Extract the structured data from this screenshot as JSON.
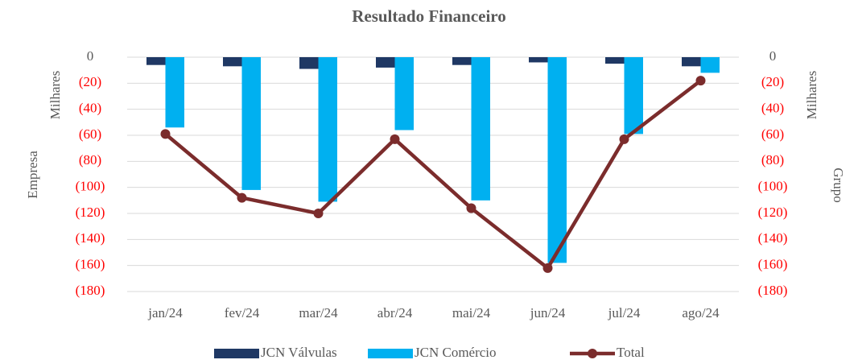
{
  "chart_data": {
    "type": "bar_line",
    "title": "Resultado Financeiro",
    "ylabel": "Empresa",
    "y_unit_label": "Milhares",
    "y2label": "Grupo",
    "y2_unit_label": "Milhares",
    "categories": [
      "jan/24",
      "fev/24",
      "mar/24",
      "abr/24",
      "mai/24",
      "jun/24",
      "jul/24",
      "ago/24"
    ],
    "series": [
      {
        "name": "JCN Válvulas",
        "type": "bar",
        "color": "#1f3864",
        "values": [
          -6,
          -7,
          -9,
          -8,
          -6,
          -4,
          -5,
          -7
        ]
      },
      {
        "name": "JCN Comércio",
        "type": "bar",
        "color": "#00b0f0",
        "values": [
          -54,
          -102,
          -111,
          -56,
          -110,
          -158,
          -59,
          -12
        ]
      },
      {
        "name": "Total",
        "type": "line",
        "axis": "y2",
        "color": "#7b2c2c",
        "values": [
          -59,
          -108,
          -120,
          -63,
          -116,
          -162,
          -63,
          -18
        ]
      }
    ],
    "ylim": [
      -180,
      0
    ],
    "yticks": [
      0,
      {
        "value": -20,
        "label": "(20)"
      },
      {
        "value": -40,
        "label": "(40)"
      },
      {
        "value": -60,
        "label": "(60)"
      },
      {
        "value": -80,
        "label": "(80)"
      },
      {
        "value": -100,
        "label": "(100)"
      },
      {
        "value": -120,
        "label": "(120)"
      },
      {
        "value": -140,
        "label": "(140)"
      },
      {
        "value": -160,
        "label": "(160)"
      },
      {
        "value": -180,
        "label": "(180)"
      }
    ],
    "y2lim": [
      -180,
      0
    ],
    "y2ticks": [
      0,
      {
        "value": -20,
        "label": "(20)"
      },
      {
        "value": -40,
        "label": "(40)"
      },
      {
        "value": -60,
        "label": "(60)"
      },
      {
        "value": -80,
        "label": "(80)"
      },
      {
        "value": -100,
        "label": "(100)"
      },
      {
        "value": -120,
        "label": "(120)"
      },
      {
        "value": -140,
        "label": "(140)"
      },
      {
        "value": -160,
        "label": "(160)"
      },
      {
        "value": -180,
        "label": "(180)"
      }
    ],
    "negative_tick_color": "#ff0000",
    "grid": true,
    "legend": "bottom"
  }
}
